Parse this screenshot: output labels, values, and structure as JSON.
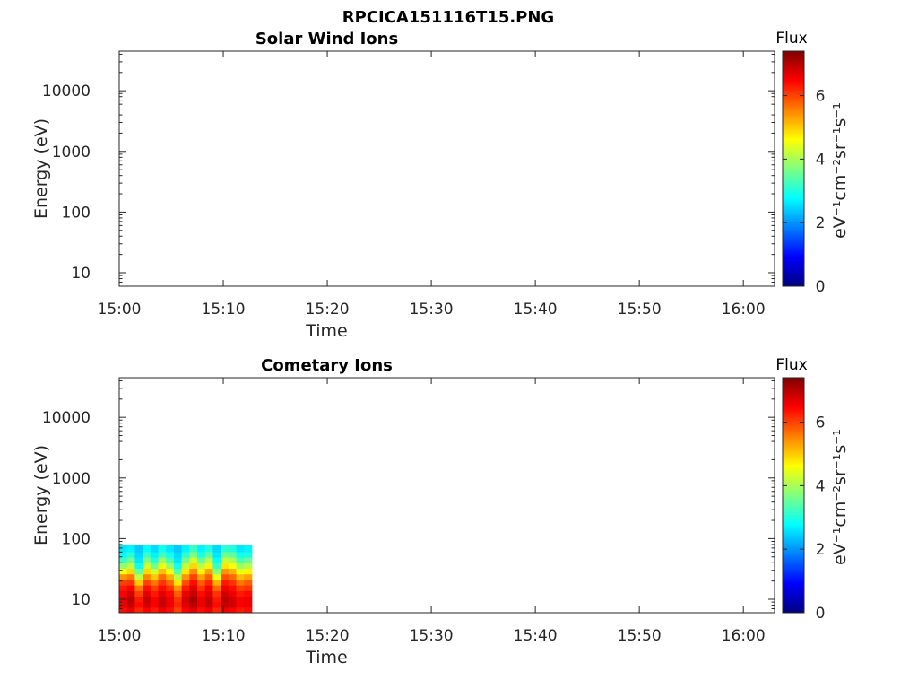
{
  "figure_title": "RPCICA151116T15.PNG",
  "chart_data": [
    {
      "type": "heatmap",
      "title": "Solar Wind Ions",
      "xlabel": "Time",
      "ylabel": "Energy (eV)",
      "x_tick_labels": [
        "15:00",
        "15:10",
        "15:20",
        "15:30",
        "15:40",
        "15:50",
        "16:00"
      ],
      "xlim": [
        "15:00",
        "16:03"
      ],
      "y_scale": "log",
      "y_tick_labels": [
        "10",
        "100",
        "1000",
        "10000"
      ],
      "ylim": [
        6,
        45000
      ],
      "colorbar": {
        "title": "Flux",
        "label": "eV⁻¹cm⁻²sr⁻¹s⁻¹",
        "tick_labels": [
          "0",
          "2",
          "4",
          "6"
        ],
        "range": [
          0,
          7.4
        ],
        "colormap": "jet"
      },
      "data": []
    },
    {
      "type": "heatmap",
      "title": "Cometary Ions",
      "xlabel": "Time",
      "ylabel": "Energy (eV)",
      "x_tick_labels": [
        "15:00",
        "15:10",
        "15:20",
        "15:30",
        "15:40",
        "15:50",
        "16:00"
      ],
      "xlim": [
        "15:00",
        "16:03"
      ],
      "y_scale": "log",
      "y_tick_labels": [
        "10",
        "100",
        "1000",
        "10000"
      ],
      "ylim": [
        6,
        45000
      ],
      "colorbar": {
        "title": "Flux",
        "label": "eV⁻¹cm⁻²sr⁻¹s⁻¹",
        "tick_labels": [
          "0",
          "2",
          "4",
          "6"
        ],
        "range": [
          0,
          7.4
        ],
        "colormap": "jet"
      },
      "data_extent": {
        "time": [
          "15:00",
          "15:12:45"
        ],
        "energy_eV": [
          6,
          80
        ]
      },
      "energy_bins_eV": [
        6.6,
        8.2,
        10.1,
        12.5,
        15.4,
        19.0,
        23.5,
        29.0,
        35.8,
        44.2,
        54.6,
        67.4
      ],
      "time_bins": [
        "15:00:00",
        "15:00:45",
        "15:01:30",
        "15:02:15",
        "15:03:00",
        "15:03:45",
        "15:04:30",
        "15:05:15",
        "15:06:00",
        "15:06:45",
        "15:07:30",
        "15:08:15",
        "15:09:00",
        "15:09:45",
        "15:10:30",
        "15:11:15",
        "15:12:00"
      ],
      "flux": [
        [
          6.4,
          6.6,
          6.6,
          6.5,
          6.3,
          6.0,
          5.4,
          4.6,
          3.8,
          3.2,
          2.8,
          2.6
        ],
        [
          6.6,
          6.9,
          7.0,
          6.8,
          6.5,
          6.1,
          5.6,
          4.9,
          4.2,
          3.6,
          3.1,
          2.7
        ],
        [
          6.2,
          6.4,
          6.3,
          6.0,
          5.6,
          5.0,
          4.2,
          3.5,
          2.9,
          2.6,
          2.5,
          2.4
        ],
        [
          6.5,
          6.8,
          6.9,
          6.7,
          6.4,
          6.0,
          5.5,
          4.9,
          4.3,
          3.7,
          3.2,
          2.8
        ],
        [
          6.3,
          6.5,
          6.5,
          6.3,
          6.0,
          5.6,
          5.0,
          4.3,
          3.6,
          3.0,
          2.7,
          2.5
        ],
        [
          6.6,
          6.9,
          6.9,
          6.7,
          6.4,
          6.1,
          5.7,
          5.1,
          4.5,
          3.9,
          3.3,
          2.9
        ],
        [
          6.4,
          6.6,
          6.6,
          6.4,
          6.1,
          5.7,
          5.2,
          4.6,
          3.9,
          3.3,
          2.9,
          2.6
        ],
        [
          6.0,
          6.2,
          6.1,
          5.8,
          5.4,
          4.8,
          4.1,
          3.4,
          2.9,
          2.6,
          2.5,
          2.4
        ],
        [
          6.5,
          6.7,
          6.8,
          6.6,
          6.3,
          5.9,
          5.4,
          4.8,
          4.2,
          3.6,
          3.1,
          2.7
        ],
        [
          6.7,
          7.0,
          7.1,
          6.9,
          6.7,
          6.4,
          6.0,
          5.5,
          4.9,
          4.3,
          3.7,
          3.2
        ],
        [
          6.4,
          6.6,
          6.6,
          6.4,
          6.1,
          5.8,
          5.3,
          4.7,
          4.1,
          3.5,
          3.0,
          2.7
        ],
        [
          6.6,
          6.9,
          6.9,
          6.7,
          6.5,
          6.2,
          5.8,
          5.3,
          4.7,
          4.1,
          3.5,
          3.0
        ],
        [
          6.2,
          6.4,
          6.3,
          6.1,
          5.7,
          5.2,
          4.5,
          3.8,
          3.2,
          2.8,
          2.6,
          2.5
        ],
        [
          6.6,
          6.9,
          7.0,
          6.8,
          6.6,
          6.3,
          5.9,
          5.4,
          4.8,
          4.2,
          3.6,
          3.1
        ],
        [
          6.5,
          6.8,
          6.8,
          6.6,
          6.4,
          6.1,
          5.7,
          5.2,
          4.6,
          4.0,
          3.5,
          3.0
        ],
        [
          6.3,
          6.5,
          6.5,
          6.3,
          6.0,
          5.6,
          5.1,
          4.5,
          3.9,
          3.3,
          2.9,
          2.6
        ],
        [
          6.4,
          6.6,
          6.6,
          6.4,
          6.1,
          5.8,
          5.3,
          4.7,
          4.1,
          3.5,
          3.0,
          2.7
        ]
      ]
    }
  ]
}
